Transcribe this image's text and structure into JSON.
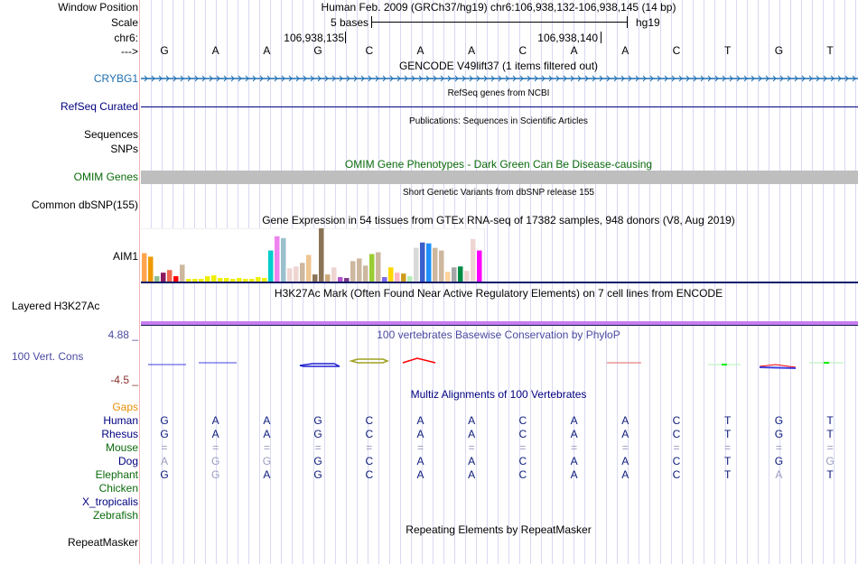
{
  "header": {
    "window_position_label": "Window Position",
    "scale_label": "Scale",
    "chrom_label": "chr6:",
    "strand_label": "--->",
    "assembly_title": "Human Feb. 2009 (GRCh37/hg19)   chr6:106,938,132-106,938,145 (14 bp)",
    "scale_text": "5 bases",
    "scale_db": "hg19",
    "pos_tick_1": "106,938,135",
    "pos_tick_2": "106,938,140",
    "bases": [
      "G",
      "A",
      "A",
      "G",
      "C",
      "A",
      "A",
      "C",
      "A",
      "A",
      "C",
      "T",
      "G",
      "T"
    ]
  },
  "tracks": {
    "gencode": {
      "title": "GENCODE V49lift37 (1 items filtered out)",
      "gene": "CRYBG1",
      "color": "#1f6fb0"
    },
    "refseq": {
      "title": "RefSeq genes from NCBI",
      "label": "RefSeq Curated",
      "color": "#000080"
    },
    "pubs": {
      "title": "Publications: Sequences in Scientific Articles",
      "label_1": "Sequences",
      "label_2": "SNPs"
    },
    "omim": {
      "title": "OMIM Gene Phenotypes - Dark Green Can Be Disease-causing",
      "label": "OMIM Genes",
      "bar_color": "#bebebe"
    },
    "dbsnp": {
      "title": "Short Genetic Variants from dbSNP release 155",
      "label": "Common dbSNP(155)"
    },
    "gtex": {
      "title": "Gene Expression in 54 tissues from GTEx RNA-seq of 17382 samples, 948 donors (V8, Aug 2019)",
      "label": "AIM1"
    },
    "h3k27ac": {
      "title": "H3K27Ac Mark (Often Found Near Active Regulatory Elements) on 7 cell lines from ENCODE",
      "label": "Layered H3K27Ac",
      "color": "#c77df0"
    },
    "phylop": {
      "title": "100 vertebrates Basewise Conservation by PhyloP",
      "label": "100 Vert. Cons",
      "max": "4.88 _",
      "min": "-4.5 _"
    },
    "multiz": {
      "title": "Multiz Alignments of 100 Vertebrates",
      "gaps_label": "Gaps",
      "species": [
        {
          "name": "Human",
          "color": "navy",
          "seq": [
            "G",
            "A",
            "A",
            "G",
            "C",
            "A",
            "A",
            "C",
            "A",
            "A",
            "C",
            "T",
            "G",
            "T"
          ],
          "faint": []
        },
        {
          "name": "Rhesus",
          "color": "navy",
          "seq": [
            "G",
            "A",
            "A",
            "G",
            "C",
            "A",
            "A",
            "C",
            "A",
            "A",
            "C",
            "T",
            "G",
            "T"
          ],
          "faint": []
        },
        {
          "name": "Mouse",
          "color": "green",
          "seq": [
            "=",
            "=",
            "=",
            "=",
            "=",
            "=",
            "=",
            "=",
            "=",
            "=",
            "=",
            "=",
            "=",
            "="
          ],
          "faint": [
            0,
            1,
            2,
            3,
            4,
            5,
            6,
            7,
            8,
            9,
            10,
            11,
            12,
            13
          ]
        },
        {
          "name": "Dog",
          "color": "navy",
          "seq": [
            "A",
            "G",
            "G",
            "G",
            "C",
            "A",
            "A",
            "C",
            "A",
            "A",
            "C",
            "T",
            "G",
            "G"
          ],
          "faint": [
            0,
            1,
            2,
            13
          ]
        },
        {
          "name": "Elephant",
          "color": "green",
          "seq": [
            "G",
            "G",
            "A",
            "G",
            "C",
            "A",
            "A",
            "C",
            "A",
            "A",
            "C",
            "T",
            "A",
            "T"
          ],
          "faint": [
            1,
            12
          ]
        },
        {
          "name": "Chicken",
          "color": "green",
          "seq": [],
          "faint": []
        },
        {
          "name": "X_tropicalis",
          "color": "navy",
          "seq": [],
          "faint": []
        },
        {
          "name": "Zebrafish",
          "color": "green",
          "seq": [],
          "faint": []
        }
      ]
    },
    "rmsk": {
      "title": "Repeating Elements by RepeatMasker",
      "label": "RepeatMasker"
    }
  },
  "chart_data": {
    "type": "bar",
    "title": "Gene Expression in 54 tissues from GTEx RNA-seq of 17382 samples, 948 donors (V8, Aug 2019)",
    "xlabel": "",
    "ylabel": "",
    "ylim": [
      0,
      60
    ],
    "values": [
      32,
      28,
      6,
      10,
      13,
      6,
      19,
      3,
      3,
      3,
      6,
      7,
      4,
      4,
      3,
      4,
      3,
      3,
      5,
      4,
      35,
      51,
      49,
      15,
      17,
      21,
      30,
      8,
      60,
      8,
      16,
      5,
      4,
      23,
      26,
      18,
      31,
      33,
      5,
      16,
      10,
      9,
      6,
      38,
      44,
      43,
      38,
      35,
      11,
      16,
      17,
      12,
      48,
      35
    ],
    "colors": [
      "#ffa54f",
      "#ee9a00",
      "#8fbc8f",
      "#8b1c62",
      "#ee6a50",
      "#ff0000",
      "#cdb79e",
      "#eeee00",
      "#eeee00",
      "#eeee00",
      "#eeee00",
      "#eeee00",
      "#eeee00",
      "#eeee00",
      "#eeee00",
      "#eeee00",
      "#eeee00",
      "#eeee00",
      "#eeee00",
      "#eeee00",
      "#00cdcd",
      "#ee82ee",
      "#9ac0cd",
      "#eed5d2",
      "#eed5d2",
      "#cdb79e",
      "#eec591",
      "#8b7355",
      "#8b7355",
      "#cdaa7d",
      "#eed5d2",
      "#b452cd",
      "#7a378b",
      "#cdb79e",
      "#cdb79e",
      "#cdb79e",
      "#9acd32",
      "#cdb79e",
      "#7b68ee",
      "#ffd700",
      "#ffb6c1",
      "#cd9b1d",
      "#b4eeb4",
      "#d9d9d9",
      "#3a5fcd",
      "#1e90ff",
      "#cdb79e",
      "#cdb79e",
      "#ffd39b",
      "#a6a6a6",
      "#008b45",
      "#eed5d2",
      "#eed5d2",
      "#ff00ff"
    ]
  }
}
